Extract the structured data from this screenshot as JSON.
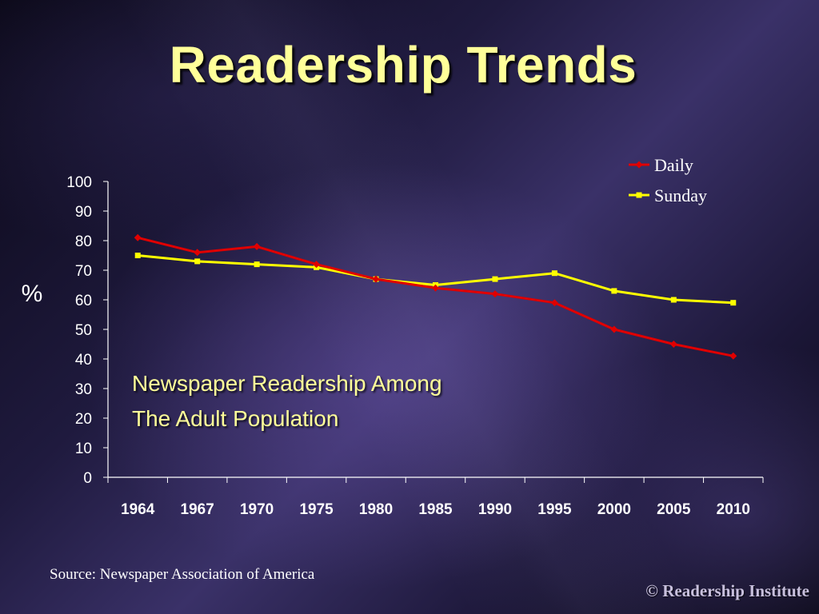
{
  "slide": {
    "title": "Readership Trends",
    "subtitle_line1": "Newspaper Readership Among",
    "subtitle_line2": "The Adult Population",
    "source": "Source:  Newspaper Association of America",
    "copyright": "© Readership Institute"
  },
  "colors": {
    "title": "#ffff99",
    "daily": "#e00000",
    "sunday": "#ffff00",
    "axis": "#ffffff"
  },
  "chart_data": {
    "type": "line",
    "title": "",
    "xlabel": "",
    "ylabel": "%",
    "categories": [
      "1964",
      "1967",
      "1970",
      "1975",
      "1980",
      "1985",
      "1990",
      "1995",
      "2000",
      "2005",
      "2010"
    ],
    "ylim": [
      0,
      100
    ],
    "yticks": [
      0,
      10,
      20,
      30,
      40,
      50,
      60,
      70,
      80,
      90,
      100
    ],
    "grid": false,
    "legend": "top-right",
    "series": [
      {
        "name": "Daily",
        "values": [
          81,
          76,
          78,
          72,
          67,
          64,
          62,
          59,
          50,
          45,
          41
        ]
      },
      {
        "name": "Sunday",
        "values": [
          75,
          73,
          72,
          71,
          67,
          65,
          67,
          69,
          63,
          60,
          59
        ]
      }
    ]
  }
}
